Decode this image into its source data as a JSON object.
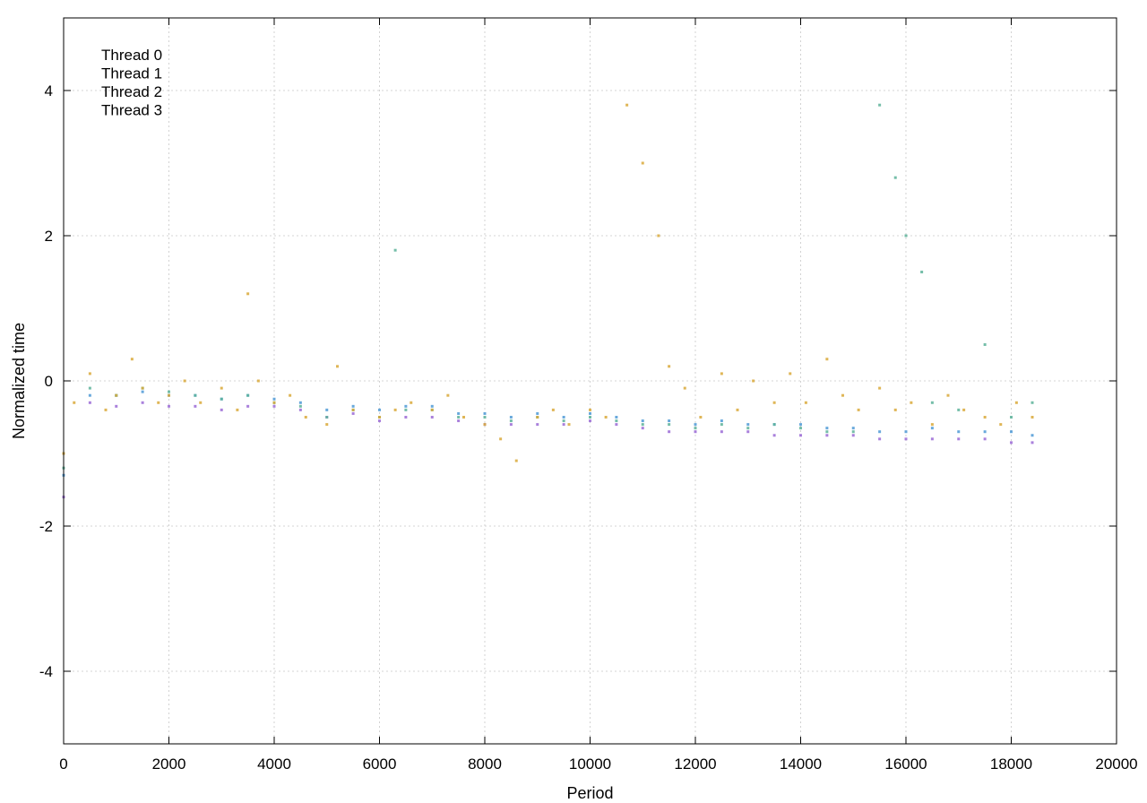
{
  "chart_data": {
    "type": "scatter",
    "title": "",
    "xlabel": "Period",
    "ylabel": "Normalized time",
    "xlim": [
      0,
      20000
    ],
    "ylim": [
      -5,
      5
    ],
    "xticks": [
      0,
      2000,
      4000,
      6000,
      8000,
      10000,
      12000,
      14000,
      16000,
      18000,
      20000
    ],
    "yticks": [
      -4,
      -2,
      0,
      2,
      4
    ],
    "xtick_labels": [
      "0",
      "2000",
      "4000",
      "6000",
      "8000",
      "10000",
      "12000",
      "14000",
      "16000",
      "18000",
      "20000"
    ],
    "ytick_labels": [
      "-4",
      "-2",
      "0",
      "2",
      "4"
    ],
    "grid": true,
    "legend_position": "top-left",
    "series": [
      {
        "name": "Thread 0",
        "color": "#9b6bd6",
        "x": [
          0,
          500,
          1000,
          1500,
          2000,
          2500,
          3000,
          3500,
          4000,
          4500,
          5000,
          5500,
          6000,
          6500,
          7000,
          7500,
          8000,
          8500,
          9000,
          9500,
          10000,
          10500,
          11000,
          11500,
          12000,
          12500,
          13000,
          13500,
          14000,
          14500,
          15000,
          15500,
          16000,
          16500,
          17000,
          17500,
          18000,
          18400
        ],
        "y": [
          -1.6,
          -0.3,
          -0.35,
          -0.3,
          -0.35,
          -0.35,
          -0.4,
          -0.35,
          -0.35,
          -0.4,
          -0.5,
          -0.45,
          -0.55,
          -0.5,
          -0.5,
          -0.55,
          -0.6,
          -0.6,
          -0.6,
          -0.6,
          -0.55,
          -0.6,
          -0.65,
          -0.7,
          -0.7,
          -0.7,
          -0.7,
          -0.75,
          -0.75,
          -0.75,
          -0.75,
          -0.8,
          -0.8,
          -0.8,
          -0.8,
          -0.8,
          -0.85,
          -0.85
        ]
      },
      {
        "name": "Thread 1",
        "color": "#4f9ad6",
        "x": [
          0,
          500,
          1000,
          1500,
          2000,
          2500,
          3000,
          3500,
          4000,
          4500,
          5000,
          5500,
          6000,
          6500,
          7000,
          7500,
          8000,
          8500,
          9000,
          9500,
          10000,
          10500,
          11000,
          11500,
          12000,
          12500,
          13000,
          13500,
          14000,
          14500,
          15000,
          15500,
          16000,
          16500,
          17000,
          17500,
          18000,
          18400
        ],
        "y": [
          -1.3,
          -0.2,
          -0.2,
          -0.15,
          -0.2,
          -0.2,
          -0.25,
          -0.2,
          -0.25,
          -0.3,
          -0.4,
          -0.35,
          -0.4,
          -0.35,
          -0.35,
          -0.45,
          -0.45,
          -0.5,
          -0.45,
          -0.5,
          -0.45,
          -0.5,
          -0.55,
          -0.55,
          -0.6,
          -0.55,
          -0.6,
          -0.6,
          -0.6,
          -0.65,
          -0.65,
          -0.7,
          -0.7,
          -0.65,
          -0.7,
          -0.7,
          -0.7,
          -0.75
        ]
      },
      {
        "name": "Thread 2",
        "color": "#5db39a",
        "x": [
          0,
          500,
          1000,
          1500,
          2000,
          2500,
          3000,
          3500,
          4000,
          4500,
          5000,
          5500,
          6000,
          6300,
          6500,
          7000,
          7500,
          8000,
          8500,
          9000,
          9500,
          10000,
          10500,
          11000,
          11500,
          12000,
          12500,
          13000,
          13500,
          14000,
          14500,
          15000,
          15500,
          15800,
          16000,
          16300,
          16500,
          17000,
          17500,
          18000,
          18400
        ],
        "y": [
          -1.2,
          -0.1,
          -0.2,
          -0.1,
          -0.15,
          -0.2,
          -0.25,
          -0.2,
          -0.3,
          -0.35,
          -0.5,
          -0.4,
          -0.5,
          1.8,
          -0.4,
          -0.4,
          -0.5,
          -0.5,
          -0.55,
          -0.5,
          -0.55,
          -0.5,
          -0.55,
          -0.6,
          -0.6,
          -0.65,
          -0.6,
          -0.65,
          -0.6,
          -0.65,
          -0.7,
          -0.7,
          3.8,
          2.8,
          2.0,
          1.5,
          -0.3,
          -0.4,
          0.5,
          -0.5,
          -0.3
        ]
      },
      {
        "name": "Thread 3",
        "color": "#d9a93a",
        "x": [
          0,
          200,
          500,
          800,
          1000,
          1300,
          1500,
          1800,
          2000,
          2300,
          2600,
          3000,
          3300,
          3500,
          3700,
          4000,
          4300,
          4600,
          5000,
          5200,
          5500,
          6000,
          6300,
          6600,
          7000,
          7300,
          7600,
          8000,
          8300,
          8600,
          9000,
          9300,
          9600,
          10000,
          10300,
          10700,
          11000,
          11300,
          11500,
          11800,
          12100,
          12500,
          12800,
          13100,
          13500,
          13800,
          14100,
          14500,
          14800,
          15100,
          15500,
          15800,
          16100,
          16500,
          16800,
          17100,
          17500,
          17800,
          18100,
          18400
        ],
        "y": [
          -1.0,
          -0.3,
          0.1,
          -0.4,
          -0.2,
          0.3,
          -0.1,
          -0.3,
          -0.2,
          0.0,
          -0.3,
          -0.1,
          -0.4,
          1.2,
          0.0,
          -0.3,
          -0.2,
          -0.5,
          -0.6,
          0.2,
          -0.4,
          -0.5,
          -0.4,
          -0.3,
          -0.4,
          -0.2,
          -0.5,
          -0.6,
          -0.8,
          -1.1,
          -0.5,
          -0.4,
          -0.6,
          -0.4,
          -0.5,
          3.8,
          3.0,
          2.0,
          0.2,
          -0.1,
          -0.5,
          0.1,
          -0.4,
          0.0,
          -0.3,
          0.1,
          -0.3,
          0.3,
          -0.2,
          -0.4,
          -0.1,
          -0.4,
          -0.3,
          -0.6,
          -0.2,
          -0.4,
          -0.5,
          -0.6,
          -0.3,
          -0.5
        ]
      }
    ]
  }
}
